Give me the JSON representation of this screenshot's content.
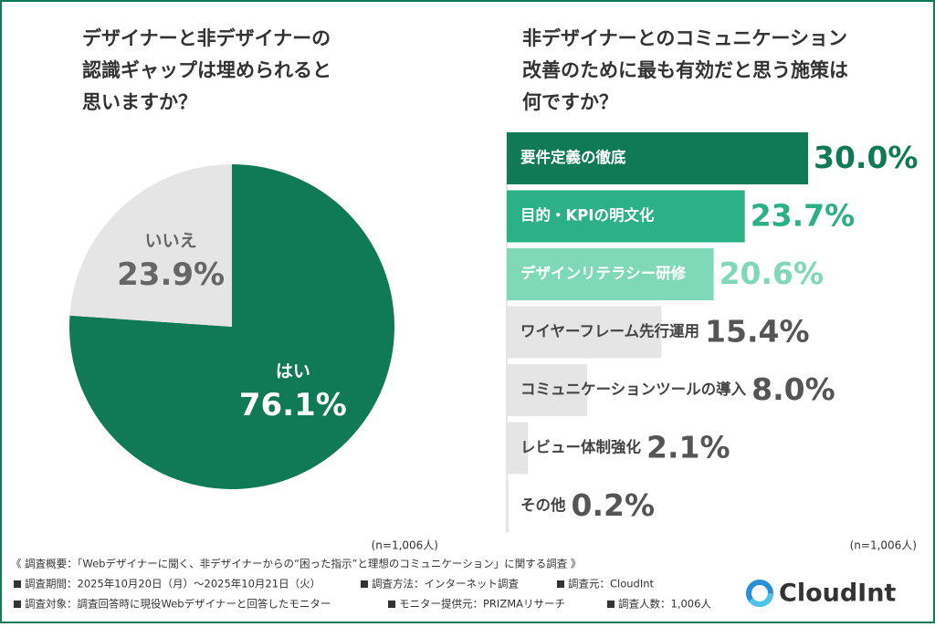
{
  "chart_data": [
    {
      "type": "pie",
      "title": [
        "デザイナーと非デザイナーの",
        "認識ギャップは埋められると",
        "思いますか？"
      ],
      "categories": [
        "はい",
        "いいえ"
      ],
      "values": [
        76.1,
        23.9
      ],
      "value_labels": [
        "76.1%",
        "23.9%"
      ],
      "colors": [
        "#0f7a55",
        "#e5e5e5"
      ],
      "text_colors": [
        "#ffffff",
        "#666666"
      ],
      "note": "(n=1,006人)"
    },
    {
      "type": "hbar",
      "title": [
        "非デザイナーとのコミュニケーション",
        "改善のために最も有効だと思う施策は",
        "何ですか？"
      ],
      "categories": [
        "要件定義の徹底",
        "目的・KPIの明文化",
        "デザインリテラシー研修",
        "ワイヤーフレーム先行運用",
        "コミュニケーションツールの導入",
        "レビュー体制強化",
        "その他"
      ],
      "values": [
        30.0,
        23.7,
        20.6,
        15.4,
        8.0,
        2.1,
        0.2
      ],
      "value_labels": [
        "30.0%",
        "23.7%",
        "20.6%",
        "15.4%",
        "8.0%",
        "2.1%",
        "0.2%"
      ],
      "colors": [
        "#0f7a55",
        "#2bb185",
        "#7fd9b8",
        "#e5e5e5",
        "#e5e5e5",
        "#e5e5e5",
        "#e5e5e5"
      ],
      "text_colors": [
        "#ffffff",
        "#ffffff",
        "#ffffff",
        "#444444",
        "#444444",
        "#444444",
        "#444444"
      ],
      "value_colors": [
        "#0f7a55",
        "#2bb185",
        "#7fd9b8",
        "#555555",
        "#555555",
        "#555555",
        "#555555"
      ],
      "xlim": [
        0,
        30
      ],
      "note": "(n=1,006人)"
    }
  ],
  "footer": {
    "survey_title": "《 調査概要：「Webデザイナーに聞く、非デザイナーからの“困った指示”と理想のコミュニケーション」に関する調査 》",
    "items": [
      [
        "調査期間：2025年10月20日（月）～2025年10月21日（火）",
        "調査方法：インターネット調査",
        "調査元：CloudInt"
      ],
      [
        "調査対象：調査回答時に現役Webデザイナーと回答したモニター",
        "モニター提供元：PRIZMAリサーチ",
        "調査人数：1,006人"
      ]
    ],
    "logo": "CloudInt"
  }
}
